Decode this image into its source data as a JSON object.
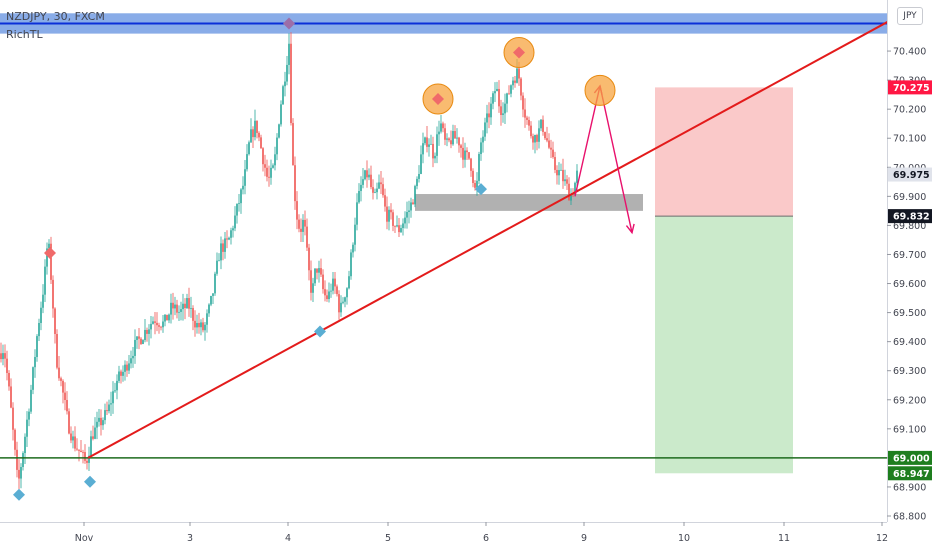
{
  "chart_data": {
    "type": "candlestick",
    "title": "NZDJPY, 30, FXCM",
    "indicator": "RichTL",
    "currency": "JPY",
    "x_axis": {
      "tick_labels": [
        "Nov",
        "3",
        "4",
        "5",
        "6",
        "9",
        "10",
        "11",
        "12"
      ]
    },
    "y_axis": {
      "range": [
        68.77,
        70.53
      ],
      "tick_values": [
        68.8,
        68.9,
        69.0,
        69.1,
        69.2,
        69.3,
        69.4,
        69.5,
        69.6,
        69.7,
        69.8,
        69.9,
        70.0,
        70.1,
        70.2,
        70.3,
        70.4
      ],
      "tick_labels": [
        "68.800",
        "68.900",
        "69.000",
        "69.100",
        "69.200",
        "69.300",
        "69.400",
        "69.500",
        "69.600",
        "69.700",
        "69.800",
        "69.900",
        "70.000",
        "70.100",
        "70.200",
        "70.300",
        "70.400"
      ]
    },
    "price_tags": [
      {
        "label": "70.275",
        "value": 70.275,
        "bg": "#ff1744",
        "fg": "#ffffff"
      },
      {
        "label": "69.975",
        "value": 69.975,
        "bg": "#e0e3eb",
        "fg": "#131722"
      },
      {
        "label": "69.832",
        "value": 69.832,
        "bg": "#131722",
        "fg": "#ffffff"
      },
      {
        "label": "69.000",
        "value": 69.0,
        "bg": "#1e7e1e",
        "fg": "#ffffff"
      },
      {
        "label": "68.947",
        "value": 68.947,
        "bg": "#1e7e1e",
        "fg": "#ffffff"
      }
    ],
    "price_path": [
      [
        0,
        69.36
      ],
      [
        4,
        69.38
      ],
      [
        10,
        69.2
      ],
      [
        18,
        68.9
      ],
      [
        24,
        69.05
      ],
      [
        32,
        69.26
      ],
      [
        38,
        69.45
      ],
      [
        44,
        69.6
      ],
      [
        48,
        69.76
      ],
      [
        52,
        69.58
      ],
      [
        56,
        69.35
      ],
      [
        62,
        69.24
      ],
      [
        68,
        69.12
      ],
      [
        74,
        69.05
      ],
      [
        80,
        69.02
      ],
      [
        86,
        68.98
      ],
      [
        92,
        69.08
      ],
      [
        100,
        69.12
      ],
      [
        108,
        69.16
      ],
      [
        116,
        69.26
      ],
      [
        124,
        69.3
      ],
      [
        134,
        69.38
      ],
      [
        144,
        69.43
      ],
      [
        154,
        69.48
      ],
      [
        164,
        69.46
      ],
      [
        172,
        69.52
      ],
      [
        180,
        69.5
      ],
      [
        188,
        69.53
      ],
      [
        196,
        69.46
      ],
      [
        204,
        69.44
      ],
      [
        212,
        69.55
      ],
      [
        220,
        69.72
      ],
      [
        228,
        69.74
      ],
      [
        236,
        69.84
      ],
      [
        244,
        69.95
      ],
      [
        250,
        70.1
      ],
      [
        256,
        70.15
      ],
      [
        262,
        70.05
      ],
      [
        268,
        69.95
      ],
      [
        274,
        70.0
      ],
      [
        280,
        70.2
      ],
      [
        285,
        70.32
      ],
      [
        289,
        70.43
      ],
      [
        292,
        70.05
      ],
      [
        296,
        69.85
      ],
      [
        300,
        69.78
      ],
      [
        304,
        69.82
      ],
      [
        308,
        69.66
      ],
      [
        312,
        69.56
      ],
      [
        316,
        69.66
      ],
      [
        320,
        69.63
      ],
      [
        324,
        69.56
      ],
      [
        328,
        69.55
      ],
      [
        332,
        69.6
      ],
      [
        336,
        69.58
      ],
      [
        340,
        69.5
      ],
      [
        344,
        69.56
      ],
      [
        348,
        69.6
      ],
      [
        352,
        69.72
      ],
      [
        356,
        69.85
      ],
      [
        362,
        69.95
      ],
      [
        368,
        69.98
      ],
      [
        374,
        69.88
      ],
      [
        380,
        69.95
      ],
      [
        386,
        69.84
      ],
      [
        392,
        69.82
      ],
      [
        398,
        69.78
      ],
      [
        404,
        69.82
      ],
      [
        410,
        69.86
      ],
      [
        416,
        69.93
      ],
      [
        422,
        70.06
      ],
      [
        428,
        70.1
      ],
      [
        434,
        70.04
      ],
      [
        440,
        70.16
      ],
      [
        446,
        70.07
      ],
      [
        452,
        70.1
      ],
      [
        458,
        70.1
      ],
      [
        464,
        70.04
      ],
      [
        470,
        70.03
      ],
      [
        476,
        69.9
      ],
      [
        480,
        70.07
      ],
      [
        486,
        70.15
      ],
      [
        492,
        70.22
      ],
      [
        496,
        70.28
      ],
      [
        500,
        70.2
      ],
      [
        506,
        70.22
      ],
      [
        512,
        70.3
      ],
      [
        518,
        70.33
      ],
      [
        524,
        70.2
      ],
      [
        530,
        70.12
      ],
      [
        536,
        70.1
      ],
      [
        542,
        70.15
      ],
      [
        548,
        70.08
      ],
      [
        554,
        70.0
      ],
      [
        560,
        69.98
      ],
      [
        566,
        69.94
      ],
      [
        570,
        69.9
      ],
      [
        574,
        69.93
      ],
      [
        578,
        69.99
      ]
    ],
    "markers": [
      {
        "kind": "high",
        "x": 289,
        "value": 70.495,
        "color": "#9c6ea8"
      },
      {
        "kind": "high",
        "x": 50,
        "value": 69.705,
        "color": "#f06a6a"
      },
      {
        "kind": "high",
        "x": 438,
        "value": 70.235,
        "color": "#f06a6a",
        "circled": true
      },
      {
        "kind": "high",
        "x": 519,
        "value": 70.395,
        "color": "#f06a6a",
        "circled": true
      },
      {
        "kind": "low",
        "x": 19,
        "value": 68.873,
        "color": "#5aaed3"
      },
      {
        "kind": "low",
        "x": 90,
        "value": 68.918,
        "color": "#5aaed3"
      },
      {
        "kind": "low",
        "x": 320,
        "value": 69.435,
        "color": "#5aaed3"
      },
      {
        "kind": "low",
        "x": 481,
        "value": 69.925,
        "color": "#5aaed3"
      }
    ],
    "lines": {
      "resistance_band": [
        70.46,
        70.53
      ],
      "resistance_line": 70.495,
      "support_line": 69.0,
      "trendline": [
        [
          88,
          69.0
        ],
        [
          890,
          70.505
        ]
      ]
    },
    "support_zone": {
      "x": [
        415,
        643
      ],
      "range": [
        69.85,
        69.908
      ]
    },
    "projection": [
      [
        575,
        69.9
      ],
      [
        600,
        70.28
      ],
      [
        632,
        69.775
      ]
    ],
    "projection_circle": {
      "x": 600,
      "value": 70.275
    },
    "position": {
      "x": [
        655,
        793
      ],
      "entry": 69.832,
      "stop": 70.275,
      "target": 68.947
    }
  }
}
